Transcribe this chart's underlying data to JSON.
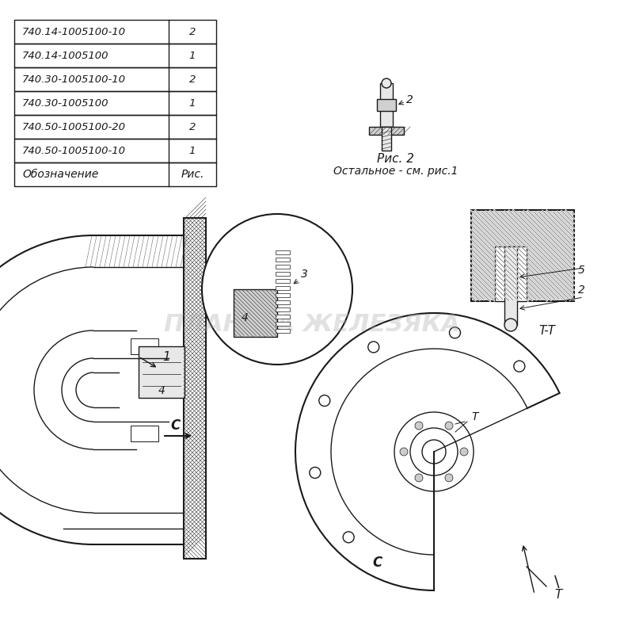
{
  "bg_color": "#ffffff",
  "table_header": [
    "Обозначение",
    "Рис."
  ],
  "table_rows": [
    [
      "740.50-1005100-10",
      "1"
    ],
    [
      "740.50-1005100-20",
      "2"
    ],
    [
      "740.30-1005100",
      "1"
    ],
    [
      "740.30-1005100-10",
      "2"
    ],
    [
      "740.14-1005100",
      "1"
    ],
    [
      "740.14-1005100-10",
      "2"
    ]
  ],
  "fig2_title": "Рис. 2",
  "fig2_subtitle": "Остальное - см. рис.1",
  "label_C_left": "C",
  "label_C_top": "C",
  "label_T": "T",
  "label_TT": "T-T",
  "label_1": "1",
  "label_2": "2",
  "label_3": "3",
  "label_4": "4",
  "label_5": "5"
}
